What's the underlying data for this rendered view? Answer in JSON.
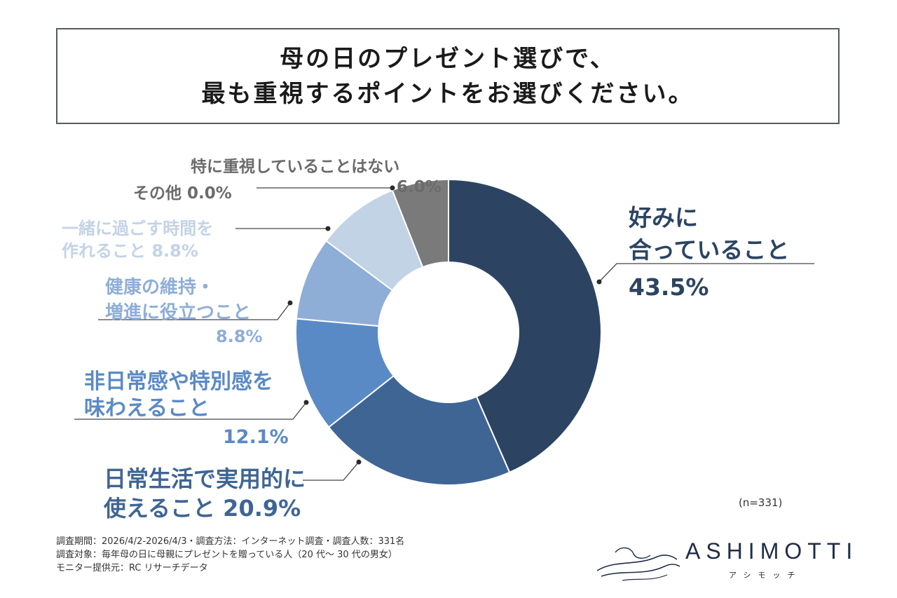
{
  "title": {
    "line1": "母の日のプレゼント選びで、",
    "line2": "最も重視するポイントをお選びください。"
  },
  "chart_data": {
    "type": "pie",
    "variant": "donut",
    "title": "母の日のプレゼント選びで、最も重視するポイントをお選びください。",
    "unit": "%",
    "n": "(n=331)",
    "slices": [
      {
        "label": "好みに合っていること",
        "label_lines": [
          "好みに",
          "合っていること"
        ],
        "value": 43.5,
        "value_text": "43.5%",
        "color": "#2c4462"
      },
      {
        "label": "日常生活で実用的に使えること",
        "label_lines": [
          "日常生活で実用的に",
          "使えること 20.9%"
        ],
        "value": 20.9,
        "value_text": "20.9%",
        "color": "#3f6595"
      },
      {
        "label": "非日常感や特別感を味わえること",
        "label_lines": [
          "非日常感や特別感を",
          "味わえること"
        ],
        "value": 12.1,
        "value_text": "12.1%",
        "color": "#5a8ac6"
      },
      {
        "label": "健康の維持・増進に役立つこと",
        "label_lines": [
          "健康の維持・",
          "増進に役立つこと"
        ],
        "value": 8.8,
        "value_text": "8.8%",
        "color": "#8eaed8"
      },
      {
        "label": "一緒に過ごす時間を作れること",
        "label_lines": [
          "一緒に過ごす時間を",
          "作れること 8.8%"
        ],
        "value": 8.8,
        "value_text": "8.8%",
        "color": "#c3d3e6"
      },
      {
        "label": "その他",
        "label_lines": [
          "その他 0.0%"
        ],
        "value": 0.0,
        "value_text": "0.0%",
        "color": "#aaaaaa"
      },
      {
        "label": "特に重視していることはない",
        "label_lines": [
          "特に重視していることはない",
          "6.0%"
        ],
        "value": 6.0,
        "value_text": "6.0%",
        "color": "#7a7a7a"
      }
    ]
  },
  "footer": {
    "line1": "調査期間：2026/4/2-2026/4/3・調査方法：インターネット調査・調査人数：331名",
    "line2": "調査対象：毎年母の日に母親にプレゼントを贈っている人（20 代〜 30 代の男女）",
    "line3": "モニター提供元：RC リサーチデータ"
  },
  "brand": {
    "name": "ASHIMOTTI",
    "kana": "アシモッチ"
  },
  "colors": {
    "label_dark": "#2c4462",
    "label_mid": "#3f6595",
    "label_blue": "#5a8ac6",
    "label_light": "#8eaed8",
    "label_pale": "#c3d3e6",
    "label_gray": "#6b6b6b"
  }
}
